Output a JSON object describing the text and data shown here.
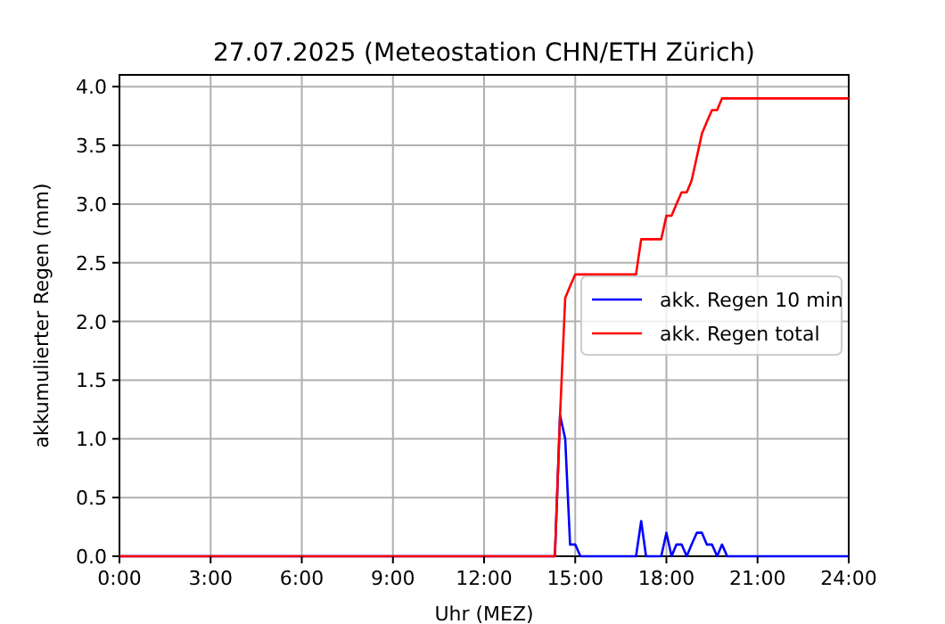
{
  "chart_data": {
    "type": "line",
    "title": "27.07.2025  (Meteostation CHN/ETH Zürich)",
    "xlabel": "Uhr (MEZ)",
    "ylabel": "akkumulierter Regen (mm)",
    "x": [
      0,
      14.33,
      14.5,
      14.67,
      14.83,
      15.0,
      15.17,
      17.0,
      17.17,
      17.33,
      17.83,
      18.0,
      18.17,
      18.33,
      18.5,
      18.67,
      18.83,
      19.0,
      19.17,
      19.33,
      19.5,
      19.67,
      19.83,
      20.0,
      24
    ],
    "series": [
      {
        "name": "akk. Regen 10 min",
        "color": "#0000ff",
        "values": [
          0,
          0,
          1.2,
          1.0,
          0.1,
          0.1,
          0,
          0,
          0.3,
          0,
          0,
          0.2,
          0,
          0.1,
          0.1,
          0,
          0.1,
          0.2,
          0.2,
          0.1,
          0.1,
          0,
          0.1,
          0,
          0
        ]
      },
      {
        "name": "akk. Regen total",
        "color": "#ff0000",
        "values": [
          0,
          0,
          1.2,
          2.2,
          2.3,
          2.4,
          2.4,
          2.4,
          2.7,
          2.7,
          2.7,
          2.9,
          2.9,
          3.0,
          3.1,
          3.1,
          3.2,
          3.4,
          3.6,
          3.7,
          3.8,
          3.8,
          3.9,
          3.9,
          3.9
        ]
      }
    ],
    "xlim": [
      0,
      24
    ],
    "xticks": [
      {
        "value": 0,
        "label": "0:00"
      },
      {
        "value": 3,
        "label": "3:00"
      },
      {
        "value": 6,
        "label": "6:00"
      },
      {
        "value": 9,
        "label": "9:00"
      },
      {
        "value": 12,
        "label": "12:00"
      },
      {
        "value": 15,
        "label": "15:00"
      },
      {
        "value": 18,
        "label": "18:00"
      },
      {
        "value": 21,
        "label": "21:00"
      },
      {
        "value": 24,
        "label": "24:00"
      }
    ],
    "ylim": [
      0,
      4.1
    ],
    "yticks": [
      {
        "value": 0,
        "label": "0.0"
      },
      {
        "value": 0.5,
        "label": "0.5"
      },
      {
        "value": 1,
        "label": "1.0"
      },
      {
        "value": 1.5,
        "label": "1.5"
      },
      {
        "value": 2,
        "label": "2.0"
      },
      {
        "value": 2.5,
        "label": "2.5"
      },
      {
        "value": 3,
        "label": "3.0"
      },
      {
        "value": 3.5,
        "label": "3.5"
      },
      {
        "value": 4,
        "label": "4.0"
      }
    ],
    "grid": true,
    "legend": "right",
    "marker": "none",
    "line_style": "solid"
  }
}
